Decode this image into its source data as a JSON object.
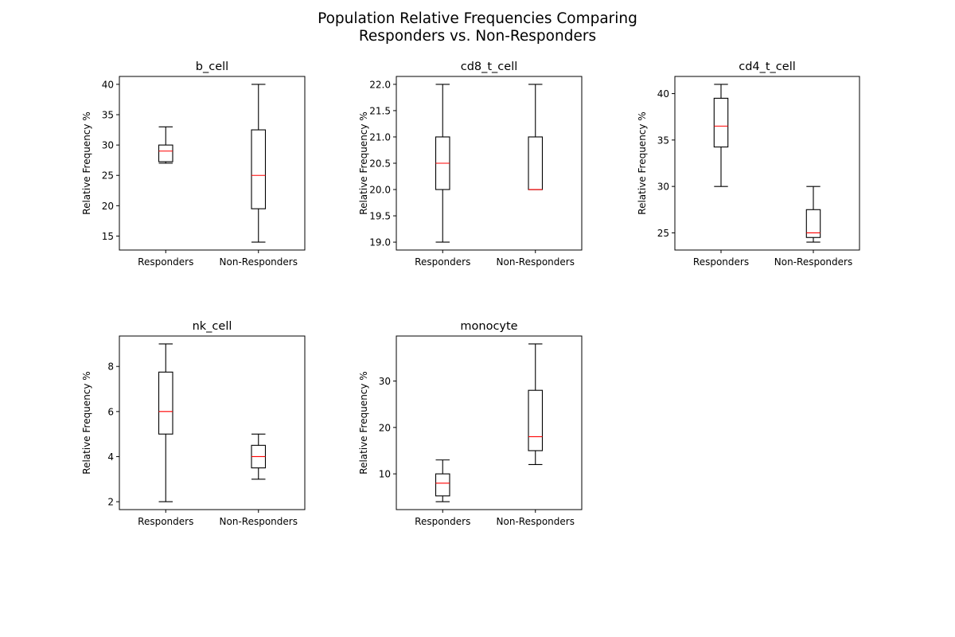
{
  "figure": {
    "title_line1": "Population Relative Frequencies Comparing",
    "title_line2": "Responders vs. Non-Responders"
  },
  "chart_data": [
    {
      "type": "box",
      "title": "b_cell",
      "ylabel": "Relative Frequency %",
      "categories": [
        "Responders",
        "Non-Responders"
      ],
      "ylim": [
        12.7,
        41.3
      ],
      "yticks": [
        15,
        20,
        25,
        30,
        35,
        40
      ],
      "yticklabels": [
        "15",
        "20",
        "25",
        "30",
        "35",
        "40"
      ],
      "boxes": [
        {
          "whisker_low": 27,
          "q1": 27.25,
          "median": 29,
          "q3": 30,
          "whisker_high": 33
        },
        {
          "whisker_low": 14,
          "q1": 19.5,
          "median": 25,
          "q3": 32.5,
          "whisker_high": 40
        }
      ]
    },
    {
      "type": "box",
      "title": "cd8_t_cell",
      "ylabel": "Relative Frequency %",
      "categories": [
        "Responders",
        "Non-Responders"
      ],
      "ylim": [
        18.85,
        22.15
      ],
      "yticks": [
        19.0,
        19.5,
        20.0,
        20.5,
        21.0,
        21.5,
        22.0
      ],
      "yticklabels": [
        "19.0",
        "19.5",
        "20.0",
        "20.5",
        "21.0",
        "21.5",
        "22.0"
      ],
      "boxes": [
        {
          "whisker_low": 19,
          "q1": 20,
          "median": 20.5,
          "q3": 21,
          "whisker_high": 22
        },
        {
          "whisker_low": 20,
          "q1": 20,
          "median": 20,
          "q3": 21,
          "whisker_high": 22
        }
      ]
    },
    {
      "type": "box",
      "title": "cd4_t_cell",
      "ylabel": "Relative Frequency %",
      "categories": [
        "Responders",
        "Non-Responders"
      ],
      "ylim": [
        23.15,
        41.85
      ],
      "yticks": [
        25,
        30,
        35,
        40
      ],
      "yticklabels": [
        "25",
        "30",
        "35",
        "40"
      ],
      "boxes": [
        {
          "whisker_low": 30,
          "q1": 34.25,
          "median": 36.5,
          "q3": 39.5,
          "whisker_high": 41
        },
        {
          "whisker_low": 24,
          "q1": 24.5,
          "median": 25,
          "q3": 27.5,
          "whisker_high": 30
        }
      ]
    },
    {
      "type": "box",
      "title": "nk_cell",
      "ylabel": "Relative Frequency %",
      "categories": [
        "Responders",
        "Non-Responders"
      ],
      "ylim": [
        1.65,
        9.35
      ],
      "yticks": [
        2,
        4,
        6,
        8
      ],
      "yticklabels": [
        "2",
        "4",
        "6",
        "8"
      ],
      "boxes": [
        {
          "whisker_low": 2,
          "q1": 5,
          "median": 6,
          "q3": 7.75,
          "whisker_high": 9
        },
        {
          "whisker_low": 3,
          "q1": 3.5,
          "median": 4,
          "q3": 4.5,
          "whisker_high": 5
        }
      ]
    },
    {
      "type": "box",
      "title": "monocyte",
      "ylabel": "Relative Frequency %",
      "categories": [
        "Responders",
        "Non-Responders"
      ],
      "ylim": [
        2.3,
        39.7
      ],
      "yticks": [
        10,
        20,
        30
      ],
      "yticklabels": [
        "10",
        "20",
        "30"
      ],
      "boxes": [
        {
          "whisker_low": 4,
          "q1": 5.25,
          "median": 8,
          "q3": 10,
          "whisker_high": 13
        },
        {
          "whisker_low": 12,
          "q1": 15,
          "median": 18,
          "q3": 28,
          "whisker_high": 38
        }
      ]
    }
  ],
  "colors": {
    "median": "#ff0000",
    "box": "#000000",
    "axes": "#000000"
  }
}
